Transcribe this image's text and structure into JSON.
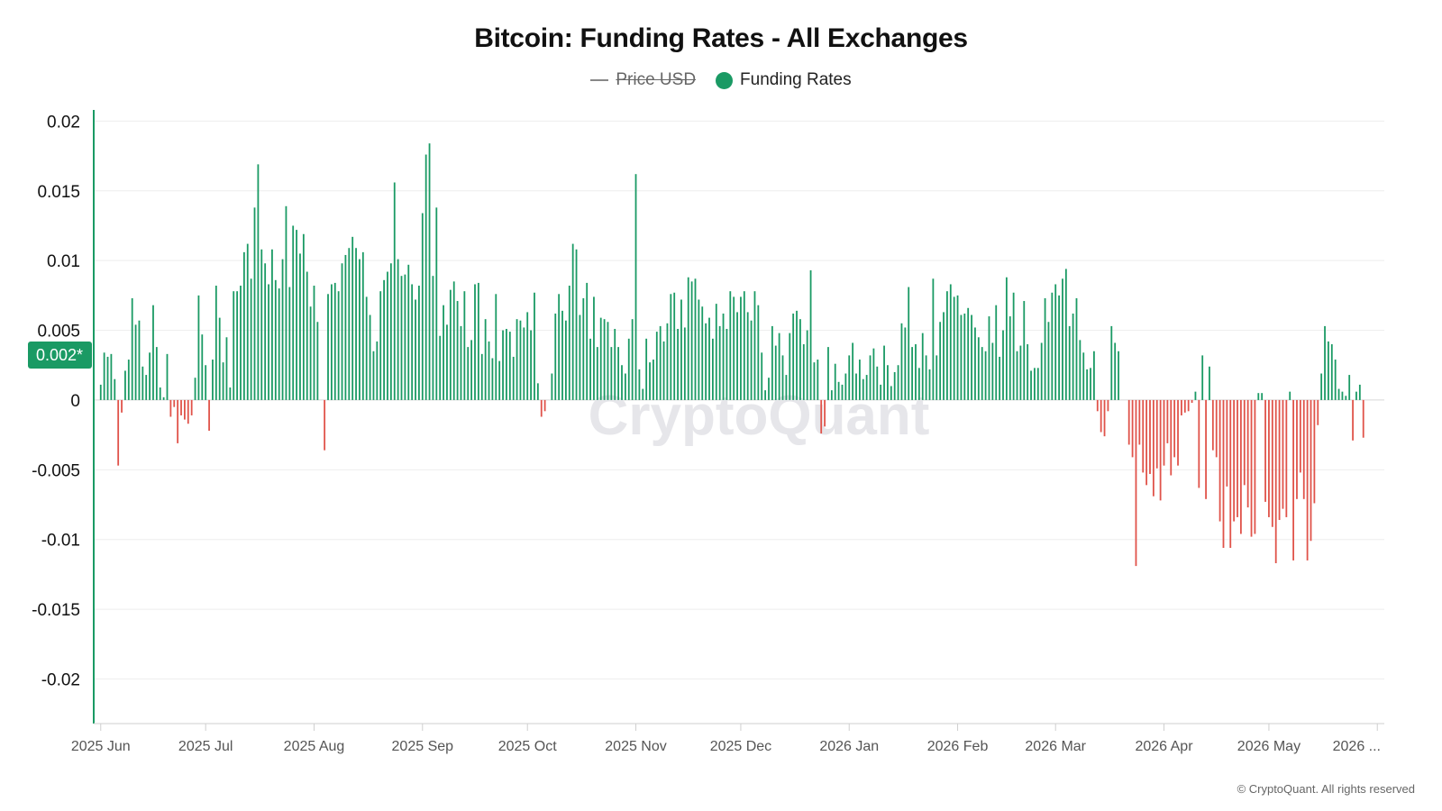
{
  "title": "Bitcoin: Funding Rates - All Exchanges",
  "legend": {
    "price_label": "Price USD",
    "funding_label": "Funding Rates"
  },
  "current_value_badge": "0.002*",
  "watermark": "CryptoQuant",
  "copyright": "© CryptoQuant. All rights reserved",
  "colors": {
    "positive": "#1a9a64",
    "negative": "#e0534a",
    "badge": "#1a9a64",
    "axis": "#1a9a64",
    "grid": "#eeeeee"
  },
  "chart_data": {
    "type": "bar",
    "title": "Bitcoin: Funding Rates - All Exchanges",
    "series": [
      {
        "name": "Funding Rates",
        "x_start": "2025-06-01",
        "x_step": "1 day",
        "values": [
          0.0011,
          0.0034,
          0.0031,
          0.0033,
          0.0015,
          -0.0047,
          -0.0009,
          0.0021,
          0.0029,
          0.0073,
          0.0054,
          0.0057,
          0.0024,
          0.0018,
          0.0034,
          0.0068,
          0.0038,
          0.0009,
          0.0002,
          0.0033,
          -0.0012,
          -0.0005,
          -0.0031,
          -0.0011,
          -0.0014,
          -0.0017,
          -0.0011,
          0.0016,
          0.0075,
          0.0047,
          0.0025,
          -0.0022,
          0.0029,
          0.0082,
          0.0059,
          0.0027,
          0.0045,
          0.0009,
          0.0078,
          0.0078,
          0.0082,
          0.0106,
          0.0112,
          0.0087,
          0.0138,
          0.0169,
          0.0108,
          0.0098,
          0.0083,
          0.0108,
          0.0086,
          0.008,
          0.0101,
          0.0139,
          0.0081,
          0.0125,
          0.0122,
          0.0105,
          0.0119,
          0.0092,
          0.0067,
          0.0082,
          0.0056,
          0.0,
          -0.0036,
          0.0076,
          0.0083,
          0.0084,
          0.0078,
          0.0098,
          0.0104,
          0.0109,
          0.0117,
          0.0109,
          0.0101,
          0.0106,
          0.0074,
          0.0061,
          0.0035,
          0.0042,
          0.0078,
          0.0086,
          0.0092,
          0.0098,
          0.0156,
          0.0101,
          0.0089,
          0.009,
          0.0097,
          0.0083,
          0.0072,
          0.0082,
          0.0134,
          0.0176,
          0.0184,
          0.0089,
          0.0138,
          0.0046,
          0.0068,
          0.0054,
          0.0079,
          0.0085,
          0.0071,
          0.0053,
          0.0078,
          0.0038,
          0.0043,
          0.0083,
          0.0084,
          0.0033,
          0.0058,
          0.0042,
          0.003,
          0.0076,
          0.0028,
          0.005,
          0.0051,
          0.0049,
          0.0031,
          0.0058,
          0.0057,
          0.0052,
          0.0063,
          0.005,
          0.0077,
          0.0012,
          -0.0012,
          -0.0008,
          0.0,
          0.0019,
          0.0062,
          0.0076,
          0.0064,
          0.0057,
          0.0082,
          0.0112,
          0.0108,
          0.0061,
          0.0073,
          0.0084,
          0.0044,
          0.0074,
          0.0038,
          0.0059,
          0.0058,
          0.0056,
          0.0038,
          0.0051,
          0.0038,
          0.0025,
          0.0019,
          0.0044,
          0.0058,
          0.0162,
          0.0022,
          0.0008,
          0.0044,
          0.0027,
          0.0029,
          0.0049,
          0.0053,
          0.0042,
          0.0055,
          0.0076,
          0.0077,
          0.0051,
          0.0072,
          0.0052,
          0.0088,
          0.0085,
          0.0087,
          0.0072,
          0.0067,
          0.0055,
          0.0059,
          0.0044,
          0.0069,
          0.0053,
          0.0062,
          0.0051,
          0.0078,
          0.0074,
          0.0063,
          0.0074,
          0.0078,
          0.0063,
          0.0057,
          0.0078,
          0.0068,
          0.0034,
          0.0007,
          0.0016,
          0.0053,
          0.0039,
          0.0048,
          0.0032,
          0.0018,
          0.0048,
          0.0062,
          0.0064,
          0.0058,
          0.004,
          0.005,
          0.0093,
          0.0027,
          0.0029,
          -0.0024,
          -0.0019,
          0.0038,
          0.0007,
          0.0026,
          0.0013,
          0.0011,
          0.0019,
          0.0032,
          0.0041,
          0.0019,
          0.0029,
          0.0015,
          0.0018,
          0.0032,
          0.0037,
          0.0024,
          0.0011,
          0.0039,
          0.0025,
          0.001,
          0.002,
          0.0025,
          0.0055,
          0.0052,
          0.0081,
          0.0038,
          0.004,
          0.0023,
          0.0048,
          0.0032,
          0.0022,
          0.0087,
          0.0032,
          0.0056,
          0.0063,
          0.0078,
          0.0083,
          0.0074,
          0.0075,
          0.0061,
          0.0062,
          0.0066,
          0.0061,
          0.0052,
          0.0045,
          0.0038,
          0.0035,
          0.006,
          0.0041,
          0.0068,
          0.0031,
          0.005,
          0.0088,
          0.006,
          0.0077,
          0.0035,
          0.0039,
          0.0071,
          0.004,
          0.0021,
          0.0023,
          0.0023,
          0.0041,
          0.0073,
          0.0056,
          0.0077,
          0.0083,
          0.0075,
          0.0087,
          0.0094,
          0.0053,
          0.0062,
          0.0073,
          0.0043,
          0.0034,
          0.0022,
          0.0023,
          0.0035,
          -0.0008,
          -0.0023,
          -0.0026,
          -0.0008,
          0.0053,
          0.0041,
          0.0035,
          0.0,
          0.0,
          -0.0032,
          -0.0041,
          -0.0119,
          -0.0032,
          -0.0052,
          -0.0061,
          -0.0053,
          -0.0069,
          -0.0049,
          -0.0072,
          -0.0047,
          -0.0031,
          -0.0054,
          -0.0041,
          -0.0047,
          -0.0011,
          -0.0009,
          -0.0008,
          -0.0002,
          0.0006,
          -0.0063,
          0.0032,
          -0.0071,
          0.0024,
          -0.0036,
          -0.0041,
          -0.0087,
          -0.0106,
          -0.0062,
          -0.0106,
          -0.0087,
          -0.0084,
          -0.0096,
          -0.0061,
          -0.0077,
          -0.0098,
          -0.0096,
          0.0005,
          0.0005,
          -0.0073,
          -0.0084,
          -0.0091,
          -0.0117,
          -0.0086,
          -0.0078,
          -0.0084,
          0.0006,
          -0.0115,
          -0.0071,
          -0.0052,
          -0.0071,
          -0.0115,
          -0.0101,
          -0.0074,
          -0.0018,
          0.0019,
          0.0053,
          0.0042,
          0.004,
          0.0029,
          0.0008,
          0.0006,
          0.0003,
          0.0018,
          -0.0029,
          0.0006,
          0.0011,
          -0.0027
        ],
        "note_values": "positive bars green, negative bars red"
      }
    ],
    "x_tick_labels": [
      "2025 Jun",
      "2025 Jul",
      "2025 Aug",
      "2025 Sep",
      "2025 Oct",
      "2025 Nov",
      "2025 Dec",
      "2026 Jan",
      "2026 Feb",
      "2026 Mar",
      "2026 Apr",
      "2026 May",
      "2026 ..."
    ],
    "x_tick_dates": [
      "2025-06-01",
      "2025-07-01",
      "2025-08-01",
      "2025-09-01",
      "2025-10-01",
      "2025-11-01",
      "2025-12-01",
      "2026-01-01",
      "2026-02-01",
      "2026-03-01",
      "2026-04-01",
      "2026-05-01",
      "2026-06-01"
    ],
    "x_range": [
      "2025-05-30",
      "2026-06-03"
    ],
    "y_ticks": [
      0.02,
      0.015,
      0.01,
      0.005,
      0,
      -0.005,
      -0.01,
      -0.015,
      -0.02
    ],
    "y_tick_labels": [
      "0.02",
      "0.015",
      "0.01",
      "0.005",
      "0",
      "-0.005",
      "-0.01",
      "-0.015",
      "-0.02"
    ],
    "ylim": [
      -0.0232,
      0.0208
    ],
    "grid": true,
    "legend_position": "top-center"
  }
}
